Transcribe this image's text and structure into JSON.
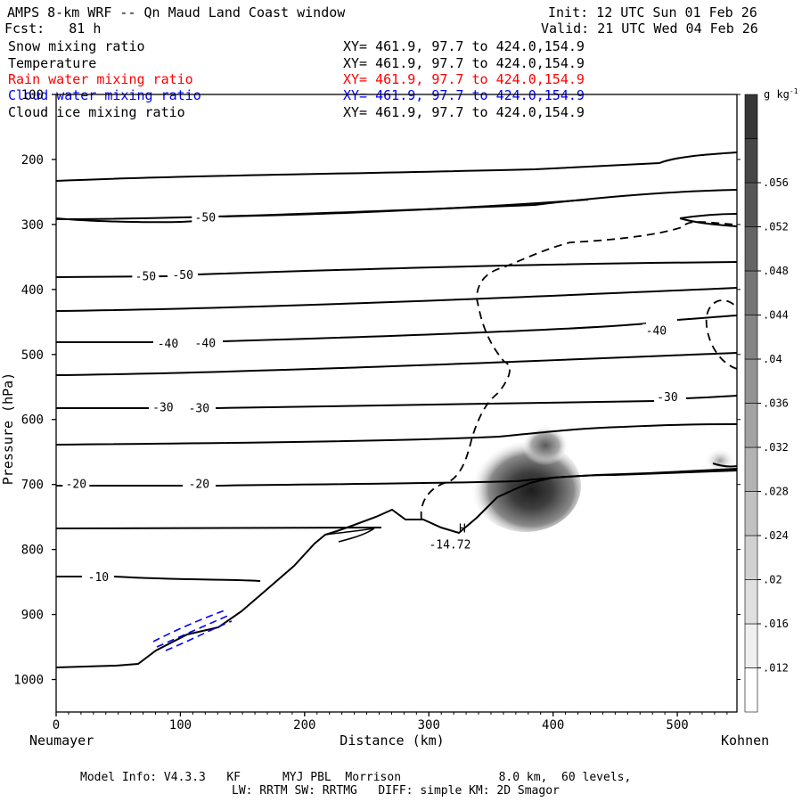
{
  "header": {
    "title": "AMPS 8-km WRF -- Qn Maud Land Coast window",
    "init": "Init: 12 UTC Sun 01 Feb 26",
    "fcst": "Fcst:   81 h",
    "valid": "Valid: 21 UTC Wed 04 Feb 26"
  },
  "legend": [
    {
      "label": "Snow mixing ratio",
      "xy": "XY= 461.9, 97.7 to 424.0,154.9",
      "color": "#000000"
    },
    {
      "label": "Temperature",
      "xy": "XY= 461.9, 97.7 to 424.0,154.9",
      "color": "#000000"
    },
    {
      "label": "Rain water mixing ratio",
      "xy": "XY= 461.9, 97.7 to 424.0,154.9",
      "color": "#ff0000"
    },
    {
      "label": "Cloud water mixing ratio",
      "xy": "XY= 461.9, 97.7 to 424.0,154.9",
      "color": "#0000ff"
    },
    {
      "label": "Cloud ice mixing ratio",
      "xy": "XY= 461.9, 97.7 to 424.0,154.9",
      "color": "#000000"
    }
  ],
  "footer": {
    "line1": "Model Info: V4.3.3   KF      MYJ PBL  Morrison              8.0 km,  60 levels,",
    "line2": "LW: RRTM SW: RRTMG   DIFF: simple KM: 2D Smagor"
  },
  "chart_data": {
    "type": "cross-section",
    "xlabel": "Distance (km)",
    "ylabel": "Pressure (hPa)",
    "xlim": [
      0,
      548
    ],
    "ylim": [
      1050,
      100
    ],
    "x_ticks": [
      0,
      100,
      200,
      300,
      400,
      500
    ],
    "y_ticks": [
      1000,
      900,
      800,
      700,
      600,
      500,
      400,
      300,
      200,
      100
    ],
    "left_endpoint": "Neumayer",
    "right_endpoint": "Kohnen",
    "colorbar": {
      "unit": "g kg",
      "unit_exp": "-1",
      "ticks": [
        ".012",
        ".016",
        ".02",
        ".024",
        ".028",
        ".032",
        ".036",
        ".04",
        ".044",
        ".048",
        ".052",
        ".056"
      ],
      "min": 0.008,
      "max": 0.06,
      "step": 0.004
    },
    "isotherm_labels": [
      {
        "text": "-50",
        "x": 120,
        "p": 290
      },
      {
        "text": "-50",
        "x": 72,
        "p": 380
      },
      {
        "text": "-50",
        "x": 102,
        "p": 378
      },
      {
        "text": "-40",
        "x": 90,
        "p": 484
      },
      {
        "text": "-40",
        "x": 120,
        "p": 483
      },
      {
        "text": "-40",
        "x": 483,
        "p": 464
      },
      {
        "text": "-30",
        "x": 86,
        "p": 582
      },
      {
        "text": "-30",
        "x": 115,
        "p": 583
      },
      {
        "text": "-30",
        "x": 492,
        "p": 566
      },
      {
        "text": "-20",
        "x": 16,
        "p": 700
      },
      {
        "text": "-20",
        "x": 115,
        "p": 700
      },
      {
        "text": "-10",
        "x": 34,
        "p": 843
      }
    ],
    "min_marker": {
      "letter": "H",
      "value": "-14.72",
      "x": 317,
      "p": 785
    },
    "terrain_km": [
      0,
      60,
      80,
      100,
      130,
      150,
      175,
      205,
      225,
      240,
      258,
      278,
      295,
      315,
      330,
      348,
      365,
      390,
      410,
      450,
      500,
      548
    ],
    "terrain_p": [
      980,
      977,
      950,
      935,
      918,
      893,
      850,
      830,
      790,
      787,
      770,
      760,
      750,
      760,
      752,
      733,
      717,
      700,
      688,
      685,
      680,
      676
    ]
  }
}
